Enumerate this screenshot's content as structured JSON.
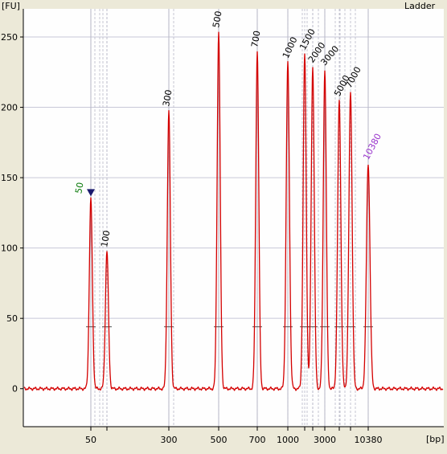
{
  "chart_data": {
    "type": "line",
    "title": "Ladder",
    "ylabel": "[FU]",
    "xlabel": "[bp]",
    "ylim": [
      -27,
      270
    ],
    "yticks": [
      0,
      50,
      100,
      150,
      200,
      250
    ],
    "xtick_labels": [
      "50",
      "300",
      "500",
      "700",
      "1000",
      "3000",
      "10380"
    ],
    "grid": true,
    "colors": {
      "trace": "#d40000",
      "plot_bg": "#fefefe",
      "frame_bg": "#ece9d8",
      "grid": "#c8c8d8",
      "lower_marker_label": "#0a7a0a",
      "upper_marker_label": "#9933cc",
      "marker_arrow": "#1a1a6e"
    },
    "series": [
      {
        "values": [
          {
            "label": "50",
            "fu": 135,
            "role": "lower-marker"
          },
          {
            "label": "100",
            "fu": 98
          },
          {
            "label": "300",
            "fu": 198
          },
          {
            "label": "500",
            "fu": 254
          },
          {
            "label": "700",
            "fu": 240
          },
          {
            "label": "1000",
            "fu": 232
          },
          {
            "label": "1500",
            "fu": 238
          },
          {
            "label": "2000",
            "fu": 229
          },
          {
            "label": "3000",
            "fu": 227
          },
          {
            "label": "5000",
            "fu": 205
          },
          {
            "label": "7000",
            "fu": 211
          },
          {
            "label": "10380",
            "fu": 160,
            "role": "upper-marker"
          }
        ]
      }
    ],
    "baseline_fu": 0,
    "threshold_fu": 44
  }
}
